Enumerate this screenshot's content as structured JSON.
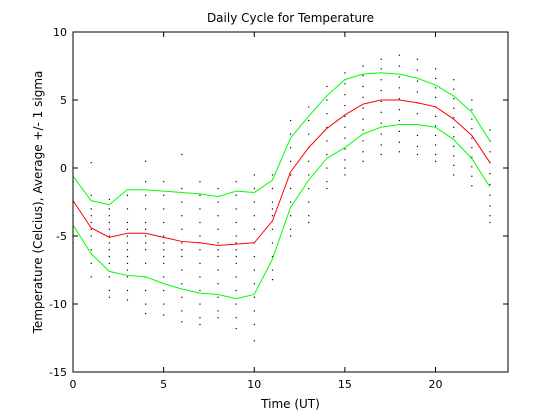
{
  "chart_data": {
    "type": "line",
    "title": "Daily Cycle for Temperature",
    "xlabel": "Time (UT)",
    "ylabel": "Temperature (Celcius), Average +/- 1 sigma",
    "xlim": [
      0,
      24
    ],
    "ylim": [
      -15,
      10
    ],
    "xticks": [
      0,
      5,
      10,
      15,
      20
    ],
    "yticks": [
      -15,
      -10,
      -5,
      0,
      5,
      10
    ],
    "grid": false,
    "legend": "none",
    "x": [
      0,
      1,
      2,
      3,
      4,
      5,
      6,
      7,
      8,
      9,
      10,
      11,
      12,
      13,
      14,
      15,
      16,
      17,
      18,
      19,
      20,
      21,
      22,
      23
    ],
    "series": [
      {
        "role": "mean",
        "color": "#ff0000",
        "values": [
          -2.4,
          -4.4,
          -5.1,
          -4.8,
          -4.8,
          -5.1,
          -5.4,
          -5.5,
          -5.7,
          -5.6,
          -5.5,
          -3.9,
          -0.3,
          1.5,
          2.9,
          3.9,
          4.7,
          5.0,
          5.0,
          4.8,
          4.5,
          3.6,
          2.4,
          0.4
        ]
      },
      {
        "role": "upper",
        "color": "#00ff00",
        "values": [
          -0.6,
          -2.4,
          -2.7,
          -1.6,
          -1.6,
          -1.7,
          -1.8,
          -1.9,
          -2.1,
          -1.7,
          -1.8,
          -0.9,
          2.2,
          3.8,
          5.3,
          6.5,
          6.9,
          7.0,
          6.9,
          6.6,
          6.1,
          5.3,
          4.1,
          2.0
        ]
      },
      {
        "role": "lower",
        "color": "#00ff00",
        "values": [
          -4.2,
          -6.3,
          -7.6,
          -7.9,
          -8.0,
          -8.5,
          -8.9,
          -9.2,
          -9.3,
          -9.6,
          -9.3,
          -6.7,
          -2.9,
          -0.9,
          0.7,
          1.5,
          2.5,
          3.0,
          3.2,
          3.2,
          3.0,
          2.1,
          0.7,
          -1.4
        ]
      }
    ],
    "scatter": {
      "color": "#000000",
      "description_values": "observation points at each hour",
      "points": [
        [
          0,
          -3.5
        ],
        [
          0,
          -1.0
        ],
        [
          0,
          -5.5
        ],
        [
          0,
          -2.5
        ],
        [
          1,
          0.4
        ],
        [
          1,
          -2.0
        ],
        [
          1,
          -3.0
        ],
        [
          1,
          -4.0
        ],
        [
          1,
          -5.0
        ],
        [
          1,
          -6.0
        ],
        [
          1,
          -7.0
        ],
        [
          1,
          -8.0
        ],
        [
          1,
          -3.5
        ],
        [
          1,
          -4.5
        ],
        [
          2,
          -2.3
        ],
        [
          2,
          -3.0
        ],
        [
          2,
          -4.0
        ],
        [
          2,
          -5.0
        ],
        [
          2,
          -6.0
        ],
        [
          2,
          -7.0
        ],
        [
          2,
          -8.0
        ],
        [
          2,
          -9.0
        ],
        [
          2,
          -9.5
        ],
        [
          2,
          -4.5
        ],
        [
          2,
          -5.5
        ],
        [
          2,
          -6.5
        ],
        [
          2,
          -3.5
        ],
        [
          3,
          -2.0
        ],
        [
          3,
          -3.0
        ],
        [
          3,
          -4.0
        ],
        [
          3,
          -5.0
        ],
        [
          3,
          -6.0
        ],
        [
          3,
          -7.0
        ],
        [
          3,
          -8.0
        ],
        [
          3,
          -9.0
        ],
        [
          3,
          -9.7
        ],
        [
          3,
          -4.5
        ],
        [
          3,
          -5.5
        ],
        [
          3,
          -6.5
        ],
        [
          3,
          -7.5
        ],
        [
          4,
          0.5
        ],
        [
          4,
          -1.0
        ],
        [
          4,
          -2.0
        ],
        [
          4,
          -3.0
        ],
        [
          4,
          -4.0
        ],
        [
          4,
          -5.0
        ],
        [
          4,
          -6.0
        ],
        [
          4,
          -7.0
        ],
        [
          4,
          -8.0
        ],
        [
          4,
          -9.0
        ],
        [
          4,
          -10.0
        ],
        [
          4,
          -10.7
        ],
        [
          4,
          -4.5
        ],
        [
          4,
          -5.5
        ],
        [
          5,
          -1.0
        ],
        [
          5,
          -2.0
        ],
        [
          5,
          -3.0
        ],
        [
          5,
          -4.0
        ],
        [
          5,
          -5.0
        ],
        [
          5,
          -6.0
        ],
        [
          5,
          -7.0
        ],
        [
          5,
          -8.0
        ],
        [
          5,
          -9.0
        ],
        [
          5,
          -10.0
        ],
        [
          5,
          -10.8
        ],
        [
          5,
          -5.5
        ],
        [
          5,
          -6.5
        ],
        [
          6,
          1.0
        ],
        [
          6,
          -1.5
        ],
        [
          6,
          -2.5
        ],
        [
          6,
          -3.5
        ],
        [
          6,
          -4.5
        ],
        [
          6,
          -5.5
        ],
        [
          6,
          -6.5
        ],
        [
          6,
          -7.5
        ],
        [
          6,
          -8.5
        ],
        [
          6,
          -9.5
        ],
        [
          6,
          -10.5
        ],
        [
          6,
          -11.3
        ],
        [
          6,
          -6.0
        ],
        [
          7,
          -1.0
        ],
        [
          7,
          -2.0
        ],
        [
          7,
          -3.0
        ],
        [
          7,
          -4.0
        ],
        [
          7,
          -5.0
        ],
        [
          7,
          -6.0
        ],
        [
          7,
          -7.0
        ],
        [
          7,
          -8.0
        ],
        [
          7,
          -9.0
        ],
        [
          7,
          -10.0
        ],
        [
          7,
          -11.0
        ],
        [
          7,
          -11.5
        ],
        [
          7,
          -5.5
        ],
        [
          8,
          -1.5
        ],
        [
          8,
          -2.5
        ],
        [
          8,
          -3.5
        ],
        [
          8,
          -4.5
        ],
        [
          8,
          -5.5
        ],
        [
          8,
          -6.5
        ],
        [
          8,
          -7.5
        ],
        [
          8,
          -8.5
        ],
        [
          8,
          -9.5
        ],
        [
          8,
          -10.5
        ],
        [
          8,
          -11.0
        ],
        [
          8,
          -6.0
        ],
        [
          9,
          -1.0
        ],
        [
          9,
          -2.0
        ],
        [
          9,
          -3.0
        ],
        [
          9,
          -4.0
        ],
        [
          9,
          -5.0
        ],
        [
          9,
          -6.0
        ],
        [
          9,
          -7.0
        ],
        [
          9,
          -8.0
        ],
        [
          9,
          -9.0
        ],
        [
          9,
          -10.0
        ],
        [
          9,
          -11.0
        ],
        [
          9,
          -11.8
        ],
        [
          9,
          -5.5
        ],
        [
          9,
          -6.5
        ],
        [
          10,
          -0.5
        ],
        [
          10,
          -1.5
        ],
        [
          10,
          -2.5
        ],
        [
          10,
          -3.5
        ],
        [
          10,
          -4.5
        ],
        [
          10,
          -5.5
        ],
        [
          10,
          -6.5
        ],
        [
          10,
          -7.5
        ],
        [
          10,
          -8.5
        ],
        [
          10,
          -9.5
        ],
        [
          10,
          -10.5
        ],
        [
          10,
          -11.5
        ],
        [
          10,
          -12.7
        ],
        [
          11,
          -0.5
        ],
        [
          11,
          -1.5
        ],
        [
          11,
          -2.5
        ],
        [
          11,
          -3.5
        ],
        [
          11,
          -4.5
        ],
        [
          11,
          -5.5
        ],
        [
          11,
          -6.5
        ],
        [
          11,
          -7.5
        ],
        [
          11,
          -8.2
        ],
        [
          11,
          -3.0
        ],
        [
          12,
          3.5
        ],
        [
          12,
          2.5
        ],
        [
          12,
          1.5
        ],
        [
          12,
          0.5
        ],
        [
          12,
          -0.5
        ],
        [
          12,
          -1.5
        ],
        [
          12,
          -2.5
        ],
        [
          12,
          -3.5
        ],
        [
          12,
          -4.5
        ],
        [
          12,
          -5.0
        ],
        [
          13,
          4.5
        ],
        [
          13,
          3.5
        ],
        [
          13,
          2.5
        ],
        [
          13,
          1.5
        ],
        [
          13,
          0.5
        ],
        [
          13,
          -0.5
        ],
        [
          13,
          -1.5
        ],
        [
          13,
          -2.5
        ],
        [
          13,
          -3.5
        ],
        [
          13,
          -4.0
        ],
        [
          14,
          6.0
        ],
        [
          14,
          5.0
        ],
        [
          14,
          4.0
        ],
        [
          14,
          3.0
        ],
        [
          14,
          2.0
        ],
        [
          14,
          1.0
        ],
        [
          14,
          0.0
        ],
        [
          14,
          -1.0
        ],
        [
          14,
          -1.5
        ],
        [
          15,
          7.0
        ],
        [
          15,
          6.2
        ],
        [
          15,
          5.4
        ],
        [
          15,
          4.6
        ],
        [
          15,
          3.8
        ],
        [
          15,
          3.0
        ],
        [
          15,
          2.2
        ],
        [
          15,
          1.4
        ],
        [
          15,
          0.6
        ],
        [
          15,
          0.0
        ],
        [
          15,
          -0.5
        ],
        [
          16,
          7.5
        ],
        [
          16,
          6.8
        ],
        [
          16,
          6.0
        ],
        [
          16,
          5.2
        ],
        [
          16,
          4.4
        ],
        [
          16,
          3.6
        ],
        [
          16,
          2.8
        ],
        [
          16,
          2.0
        ],
        [
          16,
          1.2
        ],
        [
          16,
          0.5
        ],
        [
          17,
          8.0
        ],
        [
          17,
          7.3
        ],
        [
          17,
          6.5
        ],
        [
          17,
          5.7
        ],
        [
          17,
          4.9
        ],
        [
          17,
          4.1
        ],
        [
          17,
          3.3
        ],
        [
          17,
          2.5
        ],
        [
          17,
          1.7
        ],
        [
          17,
          1.0
        ],
        [
          18,
          8.3
        ],
        [
          18,
          7.5
        ],
        [
          18,
          6.7
        ],
        [
          18,
          5.9
        ],
        [
          18,
          5.1
        ],
        [
          18,
          4.3
        ],
        [
          18,
          3.5
        ],
        [
          18,
          2.7
        ],
        [
          18,
          1.9
        ],
        [
          18,
          1.2
        ],
        [
          19,
          8.0
        ],
        [
          19,
          7.2
        ],
        [
          19,
          6.4
        ],
        [
          19,
          5.6
        ],
        [
          19,
          4.8
        ],
        [
          19,
          4.0
        ],
        [
          19,
          3.2
        ],
        [
          19,
          2.4
        ],
        [
          19,
          1.6
        ],
        [
          19,
          1.0
        ],
        [
          20,
          7.3
        ],
        [
          20,
          6.6
        ],
        [
          20,
          5.9
        ],
        [
          20,
          5.2
        ],
        [
          20,
          4.5
        ],
        [
          20,
          3.8
        ],
        [
          20,
          3.1
        ],
        [
          20,
          2.4
        ],
        [
          20,
          1.7
        ],
        [
          20,
          1.0
        ],
        [
          20,
          0.5
        ],
        [
          21,
          6.5
        ],
        [
          21,
          5.8
        ],
        [
          21,
          5.1
        ],
        [
          21,
          4.4
        ],
        [
          21,
          3.7
        ],
        [
          21,
          3.0
        ],
        [
          21,
          2.3
        ],
        [
          21,
          1.6
        ],
        [
          21,
          0.9
        ],
        [
          21,
          0.2
        ],
        [
          21,
          -0.5
        ],
        [
          22,
          5.0
        ],
        [
          22,
          4.3
        ],
        [
          22,
          3.6
        ],
        [
          22,
          2.9
        ],
        [
          22,
          2.2
        ],
        [
          22,
          1.5
        ],
        [
          22,
          0.8
        ],
        [
          22,
          0.1
        ],
        [
          22,
          -0.6
        ],
        [
          22,
          -1.3
        ],
        [
          23,
          2.8
        ],
        [
          23,
          2.0
        ],
        [
          23,
          1.2
        ],
        [
          23,
          0.4
        ],
        [
          23,
          -0.4
        ],
        [
          23,
          -1.2
        ],
        [
          23,
          -2.0
        ],
        [
          23,
          -2.8
        ],
        [
          23,
          -3.5
        ],
        [
          23,
          -4.0
        ]
      ]
    }
  }
}
